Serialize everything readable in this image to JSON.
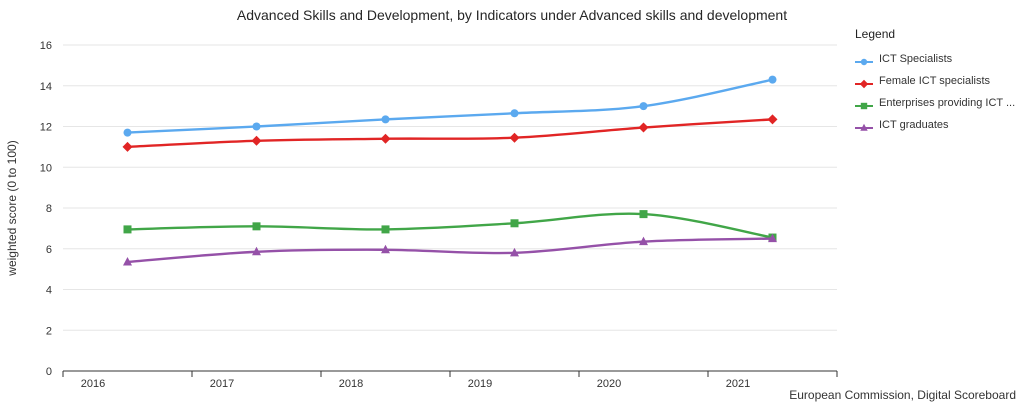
{
  "title": "Advanced Skills and Development, by Indicators under Advanced skills and development",
  "attribution": "European Commission, Digital Scoreboard",
  "legend": {
    "title": "Legend"
  },
  "y_axis": {
    "title": "weighted score (0 to 100)"
  },
  "colors": {
    "grid": "#e6e6e6",
    "axis": "#333333",
    "text": "#333333",
    "title": "#262626"
  },
  "chart_data": {
    "type": "line",
    "title": "Advanced Skills and Development, by Indicators under Advanced skills and development",
    "categories": [
      "2016",
      "2017",
      "2018",
      "2019",
      "2020",
      "2021"
    ],
    "series": [
      {
        "name": "ICT Specialists",
        "marker": "circle",
        "color": "#5ba9ef",
        "values": [
          11.7,
          12.0,
          12.35,
          12.65,
          13.0,
          14.3
        ]
      },
      {
        "name": "Female ICT specialists",
        "marker": "diamond",
        "color": "#e12525",
        "values": [
          11.0,
          11.3,
          11.4,
          11.45,
          11.95,
          12.35
        ]
      },
      {
        "name": "Enterprises providing ICT ...",
        "marker": "square",
        "color": "#41a648",
        "values": [
          6.95,
          7.1,
          6.95,
          7.25,
          7.7,
          6.55
        ]
      },
      {
        "name": "ICT graduates",
        "marker": "triangle",
        "color": "#9551a8",
        "values": [
          5.35,
          5.85,
          5.95,
          5.8,
          6.35,
          6.5
        ]
      }
    ],
    "xlabel": "",
    "ylabel": "weighted score (0 to 100)",
    "ylim": [
      0,
      16
    ],
    "yticks": [
      0,
      2,
      4,
      6,
      8,
      10,
      12,
      14,
      16
    ],
    "grid": true,
    "legend_position": "right"
  }
}
